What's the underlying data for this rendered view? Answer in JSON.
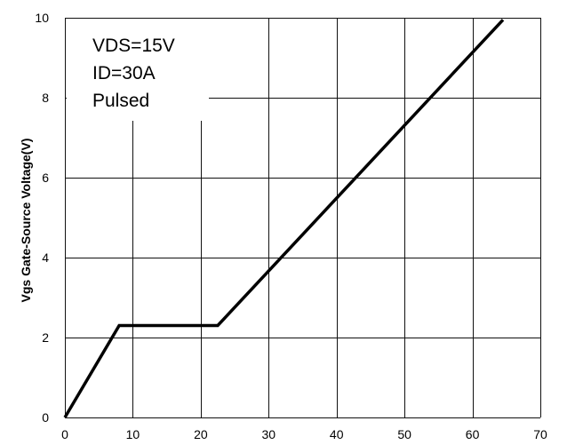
{
  "chart_data": {
    "type": "line",
    "title": "",
    "xlabel": "",
    "ylabel": "Vgs Gate-Source Voltage(V)",
    "xlim": [
      0,
      70
    ],
    "ylim": [
      0,
      10
    ],
    "x_ticks": [
      0,
      10,
      20,
      30,
      40,
      50,
      60,
      70
    ],
    "y_ticks": [
      0,
      2,
      4,
      6,
      8,
      10
    ],
    "grid": true,
    "series": [
      {
        "points": [
          [
            0,
            0
          ],
          [
            8,
            2.3
          ],
          [
            22.5,
            2.3
          ],
          [
            64.5,
            9.95
          ]
        ],
        "color": "#000000"
      }
    ],
    "annotations": [
      "VDS=15V",
      "ID=30A",
      "Pulsed"
    ]
  }
}
